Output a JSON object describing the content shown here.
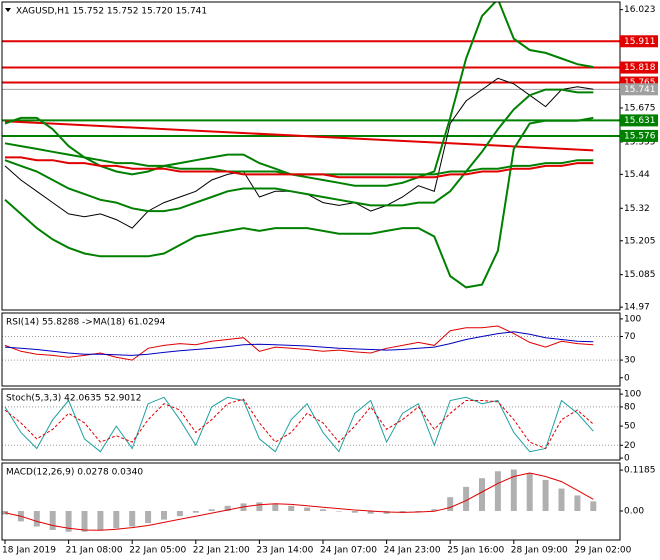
{
  "chart_data": [
    {
      "type": "line",
      "title": "XAGUSD,H1  15.752 15.752 15.720 15.741",
      "categories": [
        "18 Jan 2019",
        null,
        null,
        null,
        "21 Jan 08:00",
        null,
        null,
        null,
        "22 Jan 05:00",
        null,
        null,
        null,
        "22 Jan 21:00",
        null,
        null,
        null,
        "23 Jan 14:00",
        null,
        null,
        null,
        "24 Jan 07:00",
        null,
        null,
        null,
        "24 Jan 23:00",
        null,
        null,
        null,
        "25 Jan 16:00",
        null,
        null,
        null,
        "28 Jan 09:00",
        null,
        null,
        null,
        "29 Jan 02:00",
        null
      ],
      "ylim": [
        14.96,
        16.05
      ],
      "yticks": [
        16.023,
        15.675,
        15.555,
        15.44,
        15.32,
        15.205,
        15.085,
        14.97
      ],
      "series": [
        {
          "color": "#000000",
          "values": [
            15.47,
            15.42,
            15.38,
            15.34,
            15.3,
            15.29,
            15.3,
            15.28,
            15.25,
            15.31,
            15.34,
            15.36,
            15.38,
            15.42,
            15.44,
            15.45,
            15.36,
            15.38,
            15.38,
            15.37,
            15.34,
            15.33,
            15.34,
            15.31,
            15.33,
            15.36,
            15.4,
            15.38,
            15.62,
            15.7,
            15.74,
            15.78,
            15.76,
            15.72,
            15.68,
            15.74,
            15.75,
            15.741
          ]
        },
        {
          "color": "#008000",
          "values": [
            15.62,
            15.64,
            15.64,
            15.6,
            15.54,
            15.5,
            15.47,
            15.45,
            15.44,
            15.45,
            15.47,
            15.48,
            15.49,
            15.5,
            15.51,
            15.51,
            15.48,
            15.46,
            15.44,
            15.43,
            15.42,
            15.41,
            15.4,
            15.4,
            15.4,
            15.41,
            15.43,
            15.45,
            15.64,
            15.85,
            16.0,
            16.06,
            15.92,
            15.88,
            15.87,
            15.85,
            15.83,
            15.82
          ]
        },
        {
          "color": "#008000",
          "values": [
            15.49,
            15.47,
            15.45,
            15.42,
            15.39,
            15.37,
            15.35,
            15.34,
            15.32,
            15.31,
            15.31,
            15.32,
            15.34,
            15.36,
            15.38,
            15.39,
            15.39,
            15.39,
            15.38,
            15.37,
            15.36,
            15.35,
            15.34,
            15.33,
            15.33,
            15.33,
            15.34,
            15.34,
            15.38,
            15.45,
            15.52,
            15.6,
            15.67,
            15.72,
            15.74,
            15.74,
            15.73,
            15.73
          ]
        },
        {
          "color": "#008000",
          "values": [
            15.35,
            15.3,
            15.25,
            15.21,
            15.18,
            15.16,
            15.15,
            15.15,
            15.15,
            15.15,
            15.16,
            15.19,
            15.22,
            15.23,
            15.24,
            15.25,
            15.24,
            15.25,
            15.25,
            15.25,
            15.24,
            15.23,
            15.23,
            15.23,
            15.24,
            15.25,
            15.25,
            15.22,
            15.08,
            15.04,
            15.05,
            15.17,
            15.53,
            15.62,
            15.63,
            15.63,
            15.63,
            15.64
          ]
        },
        {
          "color": "#008000",
          "values": [
            15.55,
            15.54,
            15.53,
            15.52,
            15.51,
            15.5,
            15.49,
            15.48,
            15.48,
            15.47,
            15.47,
            15.46,
            15.46,
            15.46,
            15.45,
            15.45,
            15.45,
            15.45,
            15.44,
            15.44,
            15.44,
            15.44,
            15.44,
            15.44,
            15.44,
            15.44,
            15.44,
            15.44,
            15.45,
            15.45,
            15.46,
            15.46,
            15.47,
            15.47,
            15.48,
            15.48,
            15.49,
            15.49
          ]
        },
        {
          "color": "#e00000",
          "values": [
            15.5,
            15.5,
            15.49,
            15.49,
            15.48,
            15.48,
            15.47,
            15.47,
            15.46,
            15.46,
            15.46,
            15.45,
            15.45,
            15.45,
            15.45,
            15.44,
            15.44,
            15.44,
            15.44,
            15.44,
            15.44,
            15.43,
            15.43,
            15.43,
            15.43,
            15.43,
            15.43,
            15.43,
            15.44,
            15.44,
            15.45,
            15.45,
            15.46,
            15.46,
            15.47,
            15.47,
            15.48,
            15.48
          ]
        }
      ],
      "trendline": {
        "color": "#e00000",
        "x": [
          0,
          37
        ],
        "y": [
          15.628,
          15.525
        ]
      },
      "levels": [
        {
          "value": 15.911,
          "color": "#e00000"
        },
        {
          "value": 15.818,
          "color": "#e00000"
        },
        {
          "value": 15.765,
          "color": "#e00000"
        },
        {
          "value": 15.741,
          "color": "#a0a0a0"
        },
        {
          "value": 15.631,
          "color": "#008000"
        },
        {
          "value": 15.576,
          "color": "#008000"
        }
      ]
    },
    {
      "type": "line",
      "title": "RSI(14) 55.8288  ->MA(18) 61.0294",
      "ylim": [
        -14,
        110
      ],
      "yticks": [
        100,
        70,
        30,
        0
      ],
      "grid_levels": [
        70,
        30
      ],
      "series": [
        {
          "color": "#e00000",
          "values": [
            55,
            45,
            40,
            38,
            35,
            38,
            42,
            35,
            30,
            50,
            55,
            58,
            56,
            62,
            65,
            68,
            45,
            52,
            50,
            48,
            45,
            47,
            44,
            42,
            50,
            55,
            60,
            55,
            80,
            85,
            85,
            88,
            75,
            60,
            52,
            62,
            58,
            56
          ]
        },
        {
          "color": "#0000c0",
          "values": [
            52,
            50,
            48,
            45,
            42,
            40,
            40,
            39,
            38,
            40,
            43,
            46,
            48,
            50,
            53,
            56,
            57,
            56,
            55,
            54,
            52,
            50,
            49,
            48,
            47,
            48,
            50,
            52,
            58,
            65,
            70,
            75,
            78,
            74,
            68,
            65,
            62,
            61
          ]
        }
      ]
    },
    {
      "type": "line",
      "title": "Stoch(5,3,3) 42.0635 52.9012",
      "ylim": [
        -3,
        108
      ],
      "yticks": [
        100,
        80,
        50,
        20,
        0
      ],
      "grid_levels": [
        80,
        20
      ],
      "series": [
        {
          "color": "#20a0a0",
          "values": [
            80,
            40,
            15,
            60,
            90,
            30,
            10,
            50,
            15,
            85,
            95,
            60,
            20,
            80,
            95,
            90,
            30,
            10,
            60,
            85,
            40,
            10,
            70,
            90,
            25,
            70,
            85,
            20,
            90,
            95,
            85,
            90,
            40,
            10,
            15,
            90,
            70,
            42
          ]
        },
        {
          "color": "#e00000",
          "style": "dashed",
          "values": [
            75,
            55,
            30,
            45,
            70,
            55,
            25,
            35,
            25,
            60,
            85,
            75,
            40,
            60,
            85,
            92,
            55,
            25,
            40,
            70,
            55,
            25,
            50,
            80,
            45,
            60,
            80,
            45,
            70,
            90,
            90,
            88,
            60,
            25,
            15,
            60,
            75,
            53
          ]
        }
      ]
    },
    {
      "type": "line",
      "title": "MACD(12,26,9) 0.0278 0.0340",
      "ylim": [
        -0.084,
        0.139
      ],
      "yticks": [
        0.1185,
        {
          "value": 0,
          "label": "0.00"
        }
      ],
      "series": [
        {
          "color": "#b0b0b0",
          "style": "histogram",
          "values": [
            -0.01,
            -0.03,
            -0.045,
            -0.055,
            -0.06,
            -0.06,
            -0.055,
            -0.05,
            -0.045,
            -0.035,
            -0.025,
            -0.015,
            -0.005,
            0.005,
            0.015,
            0.022,
            0.025,
            0.02,
            0.015,
            0.01,
            0.005,
            0,
            -0.005,
            -0.008,
            -0.008,
            -0.005,
            0,
            0.005,
            0.04,
            0.07,
            0.095,
            0.115,
            0.12,
            0.11,
            0.09,
            0.065,
            0.045,
            0.0278
          ]
        },
        {
          "color": "#e00000",
          "values": [
            -0.005,
            -0.015,
            -0.03,
            -0.042,
            -0.05,
            -0.055,
            -0.056,
            -0.053,
            -0.048,
            -0.042,
            -0.033,
            -0.024,
            -0.015,
            -0.006,
            0.003,
            0.012,
            0.018,
            0.021,
            0.019,
            0.015,
            0.011,
            0.007,
            0.003,
            0,
            -0.003,
            -0.004,
            -0.003,
            -0.001,
            0.01,
            0.03,
            0.055,
            0.08,
            0.1,
            0.11,
            0.1,
            0.085,
            0.06,
            0.034
          ]
        }
      ]
    }
  ]
}
